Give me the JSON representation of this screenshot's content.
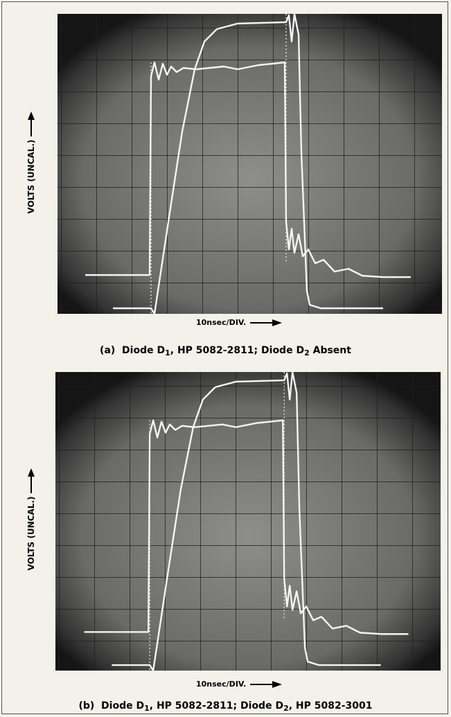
{
  "panels": [
    {
      "y_axis_label": "VOLTS (UNCAL.)",
      "x_axis_label": "10nsec/DIV.",
      "caption": {
        "label": "(a)",
        "text": [
          "Diode D",
          "1",
          ", HP 5082-2811; Diode D",
          "2",
          " Absent"
        ]
      }
    },
    {
      "y_axis_label": "VOLTS (UNCAL.)",
      "x_axis_label": "10nsec/DIV.",
      "caption": {
        "label": "(b)",
        "text": [
          "Diode D",
          "1",
          ", HP 5082-2811; Diode D",
          "2",
          ", HP 5082-3001"
        ]
      }
    }
  ]
}
